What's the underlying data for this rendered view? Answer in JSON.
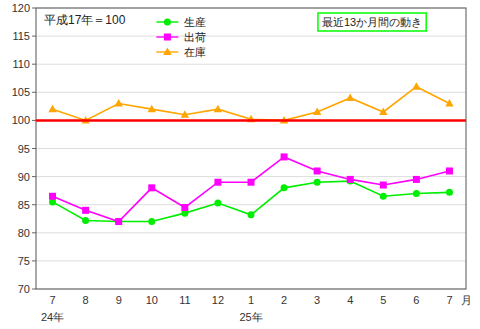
{
  "chart_data": {
    "type": "line",
    "title": "平成17年＝100",
    "annotation": {
      "text": "最近13か月間の動き",
      "color": "#00ff00"
    },
    "categories": [
      "7",
      "8",
      "9",
      "10",
      "11",
      "12",
      "1",
      "2",
      "3",
      "4",
      "5",
      "6",
      "7"
    ],
    "x_sublabels": [
      {
        "label": "24年",
        "index": 0
      },
      {
        "label": "25年",
        "index": 6
      }
    ],
    "xlabel": "月",
    "series": [
      {
        "name": "生産",
        "color": "#00ee00",
        "marker": "circle",
        "values": [
          85.5,
          82.2,
          82.0,
          82.0,
          83.5,
          85.3,
          83.2,
          88.0,
          89.0,
          89.2,
          86.5,
          87.0,
          87.2
        ]
      },
      {
        "name": "出荷",
        "color": "#ff00ff",
        "marker": "square",
        "values": [
          86.5,
          84.0,
          82.0,
          88.0,
          84.5,
          89.0,
          89.0,
          93.5,
          91.0,
          89.5,
          88.5,
          89.5,
          91.0
        ]
      },
      {
        "name": "在庫",
        "color": "#ffa500",
        "marker": "triangle",
        "values": [
          102.0,
          100.0,
          103.0,
          102.0,
          101.0,
          102.0,
          100.2,
          100.0,
          101.5,
          104.0,
          101.5,
          106.0,
          103.0
        ]
      }
    ],
    "reference_line": {
      "value": 100,
      "color": "#ff0000"
    },
    "ylim": [
      70,
      120
    ],
    "yticks": [
      70,
      75,
      80,
      85,
      90,
      95,
      100,
      105,
      110,
      115,
      120
    ],
    "grid": true,
    "legend": "top"
  }
}
